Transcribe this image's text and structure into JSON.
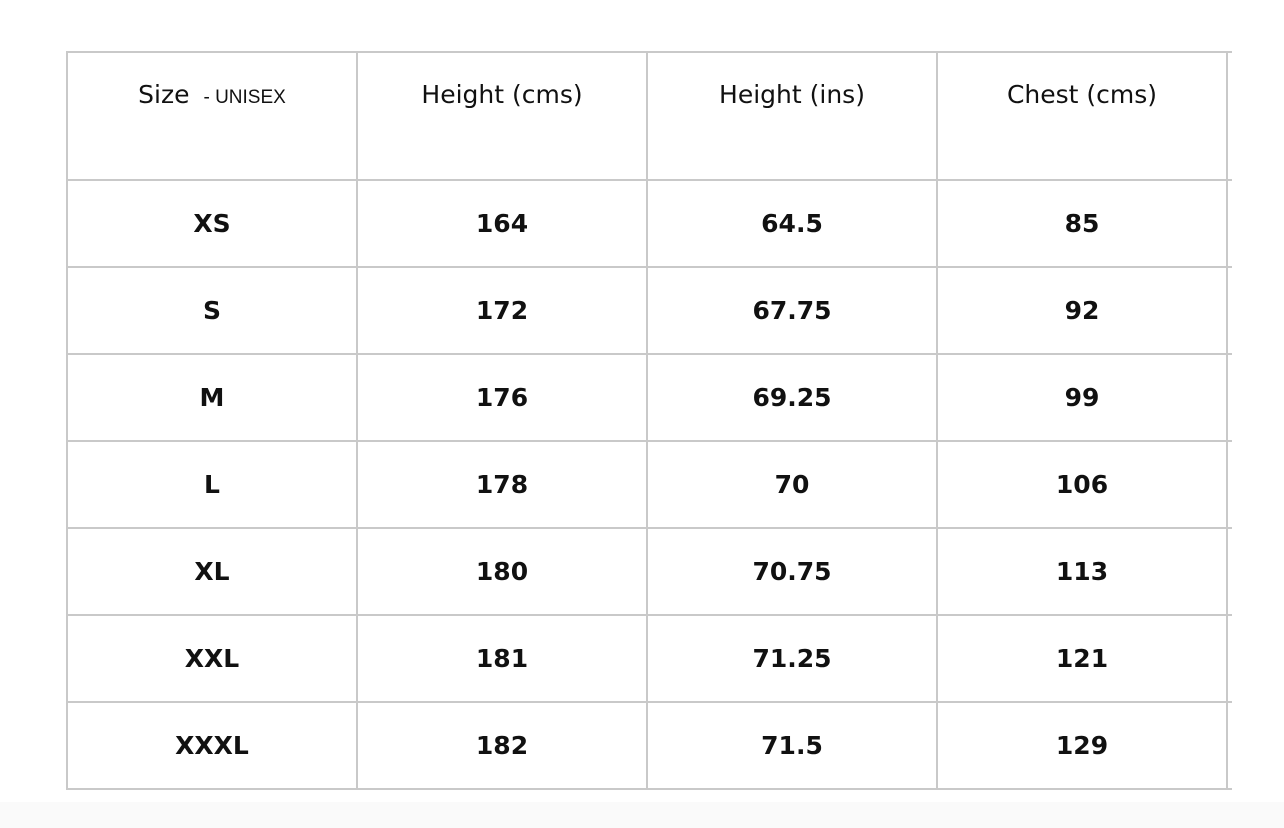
{
  "table": {
    "header": [
      "Size",
      "Height (cms)",
      "Height (ins)",
      "Chest (cms)"
    ],
    "header_note": "- UNISEX",
    "rows": [
      [
        "XS",
        "164",
        "64.5",
        "85"
      ],
      [
        "S",
        "172",
        "67.75",
        "92"
      ],
      [
        "M",
        "176",
        "69.25",
        "99"
      ],
      [
        "L",
        "178",
        "70",
        "106"
      ],
      [
        "XL",
        "180",
        "70.75",
        "113"
      ],
      [
        "XXL",
        "181",
        "71.25",
        "121"
      ],
      [
        "XXXL",
        "182",
        "71.5",
        "129"
      ]
    ]
  }
}
